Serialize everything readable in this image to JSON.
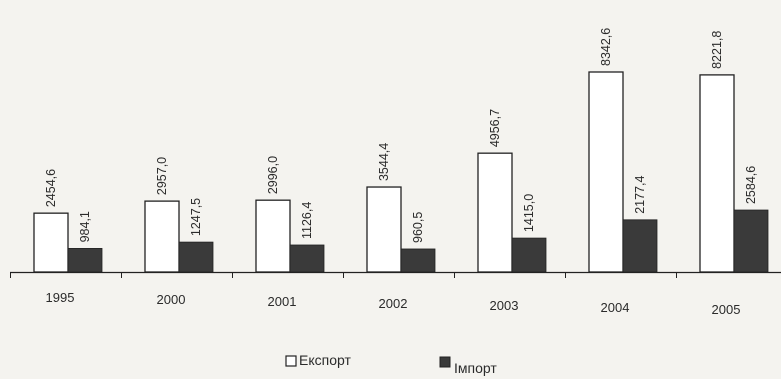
{
  "chart_data": {
    "type": "bar",
    "categories": [
      "1995",
      "2000",
      "2001",
      "2002",
      "2003",
      "2004",
      "2005"
    ],
    "series": [
      {
        "name": "Експорт",
        "values": [
          2454.6,
          2957.0,
          2996.0,
          3544.4,
          4956.7,
          8342.6,
          8221.8
        ],
        "labels": [
          "2454,6",
          "2957,0",
          "2996,0",
          "3544,4",
          "4956,7",
          "8342,6",
          "8221,8"
        ],
        "color": "#ffffff"
      },
      {
        "name": "Імпорт",
        "values": [
          984.1,
          1247.5,
          1126.4,
          960.5,
          1415.0,
          2177.4,
          2584.6
        ],
        "labels": [
          "984,1",
          "1247,5",
          "1126,4",
          "960,5",
          "1415,0",
          "2177,4",
          "2584,6"
        ],
        "color": "#3a3a3a"
      }
    ],
    "ylim": [
      0,
      8342.6
    ],
    "grid": false,
    "legend_position": "bottom-center"
  }
}
